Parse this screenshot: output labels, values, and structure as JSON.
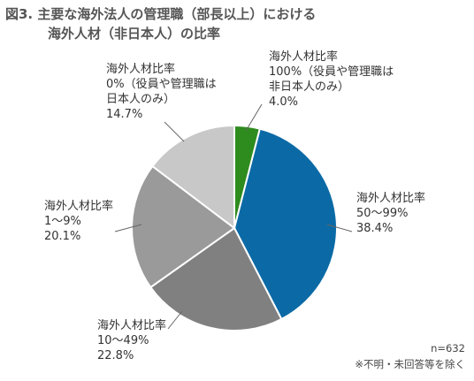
{
  "title": {
    "line1": "図3. 主要な海外法人の管理職（部長以上）における",
    "line2": "海外人材（非日本人）の比率"
  },
  "chart_data": {
    "type": "pie",
    "slices": [
      {
        "label_lines": [
          "海外人材比率",
          "100%（役員や管理職は",
          "非日本人のみ）"
        ],
        "value": 4.0,
        "display": "4.0%",
        "color": "#2e8b1e"
      },
      {
        "label_lines": [
          "海外人材比率",
          "50～99%"
        ],
        "value": 38.4,
        "display": "38.4%",
        "color": "#0b6aa6"
      },
      {
        "label_lines": [
          "海外人材比率",
          "10～49%"
        ],
        "value": 22.8,
        "display": "22.8%",
        "color": "#808080"
      },
      {
        "label_lines": [
          "海外人材比率",
          "1～9%"
        ],
        "value": 20.1,
        "display": "20.1%",
        "color": "#9a9a9a"
      },
      {
        "label_lines": [
          "海外人材比率",
          "0%（役員や管理職は",
          "日本人のみ）"
        ],
        "value": 14.7,
        "display": "14.7%",
        "color": "#c8c8c8"
      }
    ]
  },
  "notes": {
    "n": "n=632",
    "exclusion": "※不明・未回答等を除く"
  }
}
